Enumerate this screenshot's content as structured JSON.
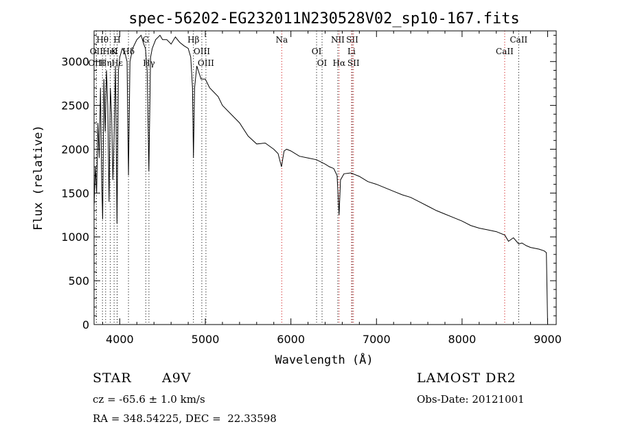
{
  "chart_data": {
    "type": "line",
    "title": "spec-56202-EG232011N230528V02_sp10-167.fits",
    "xlabel": "Wavelength (Å)",
    "ylabel": "Flux (relative)",
    "xlim": [
      3700,
      9100
    ],
    "ylim": [
      0,
      3350
    ],
    "xticks": [
      4000,
      5000,
      6000,
      7000,
      8000,
      9000
    ],
    "yticks": [
      0,
      500,
      1000,
      1500,
      2000,
      2500,
      3000
    ],
    "grid": false,
    "line_color": "#000000",
    "series": [
      {
        "x": [
          3700,
          3715,
          3730,
          3745,
          3760,
          3775,
          3790,
          3800,
          3815,
          3830,
          3845,
          3860,
          3875,
          3890,
          3905,
          3920,
          3935,
          3950,
          3968,
          3985,
          4000,
          4030,
          4060,
          4085,
          4102,
          4120,
          4150,
          4200,
          4250,
          4280,
          4300,
          4320,
          4340,
          4360,
          4380,
          4420,
          4470,
          4500,
          4550,
          4600,
          4650,
          4700,
          4750,
          4800,
          4830,
          4850,
          4861,
          4875,
          4900,
          4950,
          5000,
          5050,
          5100,
          5150,
          5200,
          5300,
          5400,
          5500,
          5600,
          5700,
          5800,
          5850,
          5890,
          5920,
          5950,
          6000,
          6100,
          6200,
          6300,
          6400,
          6450,
          6500,
          6540,
          6563,
          6580,
          6620,
          6700,
          6800,
          6900,
          7000,
          7100,
          7200,
          7300,
          7400,
          7500,
          7600,
          7700,
          7800,
          7900,
          8000,
          8100,
          8200,
          8300,
          8400,
          8500,
          8542,
          8600,
          8662,
          8700,
          8750,
          8800,
          8900,
          8960,
          8985,
          9000
        ],
        "y": [
          1350,
          1800,
          1500,
          2300,
          1900,
          2700,
          1600,
          1200,
          2800,
          2200,
          2900,
          2500,
          1400,
          2700,
          2400,
          1650,
          2200,
          2950,
          1150,
          2900,
          3050,
          3150,
          3100,
          3000,
          1700,
          3000,
          3150,
          3250,
          3300,
          3200,
          3150,
          2900,
          1750,
          3050,
          3150,
          3250,
          3300,
          3250,
          3250,
          3200,
          3280,
          3220,
          3180,
          3150,
          3050,
          2700,
          1900,
          2700,
          2950,
          2800,
          2800,
          2700,
          2650,
          2600,
          2500,
          2400,
          2300,
          2150,
          2060,
          2070,
          2000,
          1950,
          1800,
          1980,
          2000,
          1980,
          1920,
          1900,
          1880,
          1830,
          1800,
          1780,
          1700,
          1250,
          1650,
          1720,
          1730,
          1690,
          1630,
          1600,
          1560,
          1520,
          1480,
          1450,
          1400,
          1350,
          1300,
          1260,
          1220,
          1180,
          1130,
          1100,
          1080,
          1060,
          1020,
          950,
          990,
          920,
          930,
          900,
          880,
          860,
          840,
          820,
          0
        ]
      }
    ],
    "line_markers": [
      {
        "label": "Hθ",
        "wave": 3798,
        "row": 0,
        "color": "#000000"
      },
      {
        "label": "OII",
        "wave": 3727,
        "row": 1,
        "color": "#000000"
      },
      {
        "label": "OIII",
        "wave": 3727,
        "row": 2,
        "color": "#000000"
      },
      {
        "label": "Hη",
        "wave": 3835,
        "row": 2,
        "color": "#000000"
      },
      {
        "label": "HeI",
        "wave": 3889,
        "row": 1,
        "color": "#000000"
      },
      {
        "label": "H",
        "wave": 3969,
        "row": 0,
        "color": "#000000"
      },
      {
        "label": "K",
        "wave": 3934,
        "row": 1,
        "color": "#000000"
      },
      {
        "label": "Hδ",
        "wave": 4102,
        "row": 1,
        "color": "#000000"
      },
      {
        "label": "Hε",
        "wave": 3970,
        "row": 2,
        "color": "#000000"
      },
      {
        "label": "G",
        "wave": 4304,
        "row": 0,
        "color": "#000000"
      },
      {
        "label": "Hγ",
        "wave": 4341,
        "row": 2,
        "color": "#000000"
      },
      {
        "label": "Hβ",
        "wave": 4861,
        "row": 0,
        "color": "#000000"
      },
      {
        "label": "OIII",
        "wave": 4959,
        "row": 1,
        "color": "#000000"
      },
      {
        "label": "OIII",
        "wave": 5007,
        "row": 2,
        "color": "#000000"
      },
      {
        "label": "Na",
        "wave": 5893,
        "row": 0,
        "color": "#cc0000"
      },
      {
        "label": "OI",
        "wave": 6300,
        "row": 1,
        "color": "#000000"
      },
      {
        "label": "OI",
        "wave": 6364,
        "row": 2,
        "color": "#000000"
      },
      {
        "label": "NII",
        "wave": 6548,
        "row": 0,
        "color": "#000000"
      },
      {
        "label": "Hα",
        "wave": 6563,
        "row": 2,
        "color": "#cc0000"
      },
      {
        "label": "SII",
        "wave": 6717,
        "row": 0,
        "color": "#000000"
      },
      {
        "label": "Li",
        "wave": 6708,
        "row": 1,
        "color": "#cc0000"
      },
      {
        "label": "SII",
        "wave": 6731,
        "row": 2,
        "color": "#cc0000"
      },
      {
        "label": "CaII",
        "wave": 8498,
        "row": 1,
        "color": "#cc0000"
      },
      {
        "label": "CaII",
        "wave": 8662,
        "row": 0,
        "color": "#000000"
      }
    ]
  },
  "info": {
    "object_class": "STAR",
    "subclass": "A9V",
    "cz": "cz = -65.6 ± 1.0 km/s",
    "radec": "RA = 348.54225, DEC =  22.33598",
    "survey": "LAMOST DR2",
    "obs_date": "Obs-Date: 20121001"
  }
}
